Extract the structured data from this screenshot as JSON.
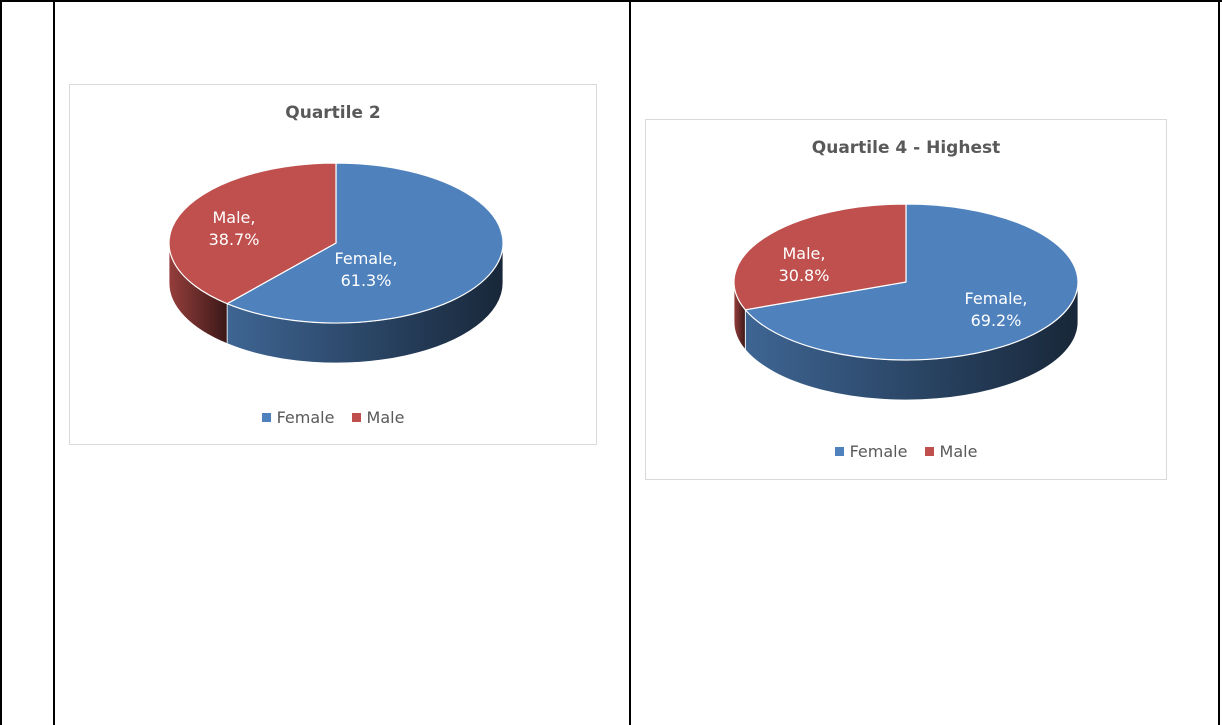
{
  "colors": {
    "female": "#4f81bd",
    "male": "#c0504d"
  },
  "chart_data": [
    {
      "type": "pie",
      "title": "Quartile 2",
      "categories": [
        "Female",
        "Male"
      ],
      "values": [
        61.3,
        38.7
      ],
      "data_labels": [
        {
          "line1": "Female,",
          "line2": "61.3%"
        },
        {
          "line1": "Male,",
          "line2": "38.7%"
        }
      ],
      "legend": [
        "Female",
        "Male"
      ],
      "legend_position": "bottom",
      "style": "3d"
    },
    {
      "type": "pie",
      "title": "Quartile 4 - Highest",
      "categories": [
        "Female",
        "Male"
      ],
      "values": [
        69.2,
        30.8
      ],
      "data_labels": [
        {
          "line1": "Female,",
          "line2": "69.2%"
        },
        {
          "line1": "Male,",
          "line2": "30.8%"
        }
      ],
      "legend": [
        "Female",
        "Male"
      ],
      "legend_position": "bottom",
      "style": "3d"
    }
  ]
}
